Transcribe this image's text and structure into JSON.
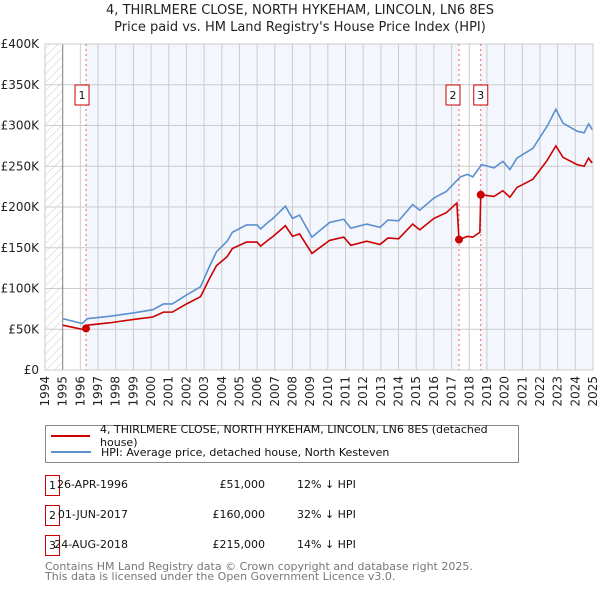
{
  "title": "4, THIRLMERE CLOSE, NORTH HYKEHAM, LINCOLN, LN6 8ES",
  "subtitle": "Price paid vs. HM Land Registry's House Price Index (HPI)",
  "chart_data": {
    "type": "line",
    "xlim": [
      1994,
      2025
    ],
    "ylim": [
      0,
      400000
    ],
    "y_ticks": [
      {
        "v": 0,
        "label": "£0"
      },
      {
        "v": 50000,
        "label": "£50K"
      },
      {
        "v": 100000,
        "label": "£100K"
      },
      {
        "v": 150000,
        "label": "£150K"
      },
      {
        "v": 200000,
        "label": "£200K"
      },
      {
        "v": 250000,
        "label": "£250K"
      },
      {
        "v": 300000,
        "label": "£300K"
      },
      {
        "v": 350000,
        "label": "£350K"
      },
      {
        "v": 400000,
        "label": "£400K"
      }
    ],
    "x_ticks": [
      "1994",
      "1995",
      "1996",
      "1997",
      "1998",
      "1999",
      "2000",
      "2001",
      "2002",
      "2003",
      "2004",
      "2005",
      "2006",
      "2007",
      "2008",
      "2009",
      "2010",
      "2011",
      "2012",
      "2013",
      "2014",
      "2015",
      "2016",
      "2017",
      "2018",
      "2019",
      "2020",
      "2021",
      "2022",
      "2023",
      "2024",
      "2025"
    ],
    "series": [
      {
        "name": "4, THIRLMERE CLOSE, NORTH HYKEHAM, LINCOLN, LN6 8ES (detached house)",
        "color": "#cc0000",
        "x": [
          1995.0,
          1996.1,
          1996.32,
          1996.4,
          1997.7,
          1999.0,
          2000.1,
          2000.7,
          2001.2,
          2002.0,
          2002.8,
          2003.3,
          2003.7,
          2004.3,
          2004.6,
          2005.4,
          2006.0,
          2006.2,
          2006.6,
          2006.9,
          2007.6,
          2008.0,
          2008.4,
          2009.1,
          2010.1,
          2010.9,
          2011.3,
          2012.2,
          2012.95,
          2013.4,
          2014.0,
          2014.8,
          2015.2,
          2016.0,
          2016.7,
          2017.3,
          2017.42,
          2017.9,
          2018.2,
          2018.6,
          2018.65,
          2019.4,
          2019.9,
          2020.3,
          2020.7,
          2021.6,
          2022.4,
          2022.9,
          2023.3,
          2024.1,
          2024.5,
          2024.75,
          2024.95
        ],
        "y": [
          55000,
          50000,
          51000,
          55000,
          58000,
          62000,
          65000,
          71000,
          71000,
          81000,
          90000,
          112000,
          128000,
          139000,
          149000,
          157000,
          157000,
          152000,
          159000,
          164000,
          177000,
          164000,
          167000,
          143000,
          159000,
          163000,
          153000,
          158000,
          154000,
          162000,
          161000,
          179000,
          172000,
          186000,
          193000,
          205000,
          160000,
          164000,
          163000,
          169000,
          215000,
          213000,
          220000,
          212000,
          224000,
          234000,
          257000,
          275000,
          261000,
          252000,
          250000,
          260000,
          254000
        ]
      },
      {
        "name": "HPI: Average price, detached house, North Kesteven",
        "color": "#5b8fd0",
        "x": [
          1995.0,
          1996.1,
          1996.4,
          1997.7,
          1999.0,
          2000.1,
          2000.7,
          2001.2,
          2002.0,
          2002.8,
          2003.3,
          2003.7,
          2004.3,
          2004.6,
          2005.4,
          2006.0,
          2006.2,
          2006.6,
          2006.9,
          2007.6,
          2008.0,
          2008.4,
          2009.1,
          2010.1,
          2010.9,
          2011.3,
          2012.2,
          2012.95,
          2013.4,
          2014.0,
          2014.8,
          2015.2,
          2016.0,
          2016.7,
          2017.5,
          2017.9,
          2018.2,
          2018.7,
          2019.4,
          2019.9,
          2020.3,
          2020.7,
          2021.6,
          2022.4,
          2022.9,
          2023.3,
          2024.1,
          2024.5,
          2024.75,
          2024.95
        ],
        "y": [
          63000,
          57000,
          63000,
          66000,
          70000,
          74000,
          81000,
          81000,
          92000,
          102000,
          127000,
          145000,
          158000,
          169000,
          178000,
          178000,
          173000,
          181000,
          186000,
          201000,
          186000,
          190000,
          163000,
          181000,
          185000,
          174000,
          179000,
          175000,
          184000,
          183000,
          203000,
          196000,
          211000,
          219000,
          237000,
          240000,
          237000,
          252000,
          248000,
          256000,
          246000,
          260000,
          272000,
          299000,
          320000,
          303000,
          293000,
          291000,
          302000,
          295000
        ]
      }
    ],
    "sales": [
      {
        "n": "1",
        "x": 1996.32,
        "price": 51000,
        "date": "26-APR-1996",
        "price_label": "£51,000",
        "hpi": "12% ↓ HPI"
      },
      {
        "n": "2",
        "x": 2017.42,
        "price": 160000,
        "date": "01-JUN-2017",
        "price_label": "£160,000",
        "hpi": "32% ↓ HPI"
      },
      {
        "n": "3",
        "x": 2018.65,
        "price": 215000,
        "date": "24-AUG-2018",
        "price_label": "£215,000",
        "hpi": "14% ↓ HPI"
      }
    ]
  },
  "footer": [
    "Contains HM Land Registry data © Crown copyright and database right 2025.",
    "This data is licensed under the Open Government Licence v3.0."
  ]
}
